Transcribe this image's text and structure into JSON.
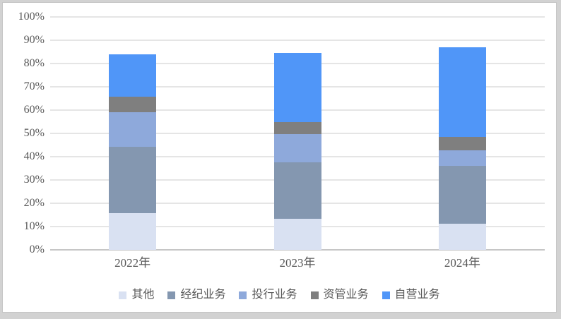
{
  "chart_data": {
    "type": "bar",
    "stacked": true,
    "title": "",
    "xlabel": "",
    "ylabel": "",
    "categories": [
      "2022年",
      "2023年",
      "2024年"
    ],
    "series": [
      {
        "name": "其他",
        "color": "#D9E1F2",
        "values": [
          15.8,
          13.3,
          11.2
        ]
      },
      {
        "name": "经纪业务",
        "color": "#8497B0",
        "values": [
          28.4,
          24.3,
          24.8
        ]
      },
      {
        "name": "投行业务",
        "color": "#8EA9DB",
        "values": [
          14.8,
          12.2,
          6.8
        ]
      },
      {
        "name": "资管业务",
        "color": "#7F7F7F",
        "values": [
          6.8,
          5.0,
          5.7
        ]
      },
      {
        "name": "自营业务",
        "color": "#5096F8",
        "values": [
          18.2,
          29.7,
          38.5
        ]
      }
    ],
    "stack_totals": [
      84.0,
      84.5,
      87.0
    ],
    "ylim": [
      0,
      100
    ],
    "ytick_step": 10,
    "ytick_labels": [
      "0%",
      "10%",
      "20%",
      "30%",
      "40%",
      "50%",
      "60%",
      "70%",
      "80%",
      "90%",
      "100%"
    ],
    "grid": true,
    "legend_position": "bottom",
    "legend_labels": [
      "其他",
      "经纪业务",
      "投行业务",
      "资管业务",
      "自营业务"
    ]
  },
  "colors": {
    "text": "#595959",
    "gridline": "#E5E5E5",
    "axis_line": "#C6C6C6",
    "plot_background": "#FFFFFF",
    "outer_frame": "#D2D2D2"
  }
}
